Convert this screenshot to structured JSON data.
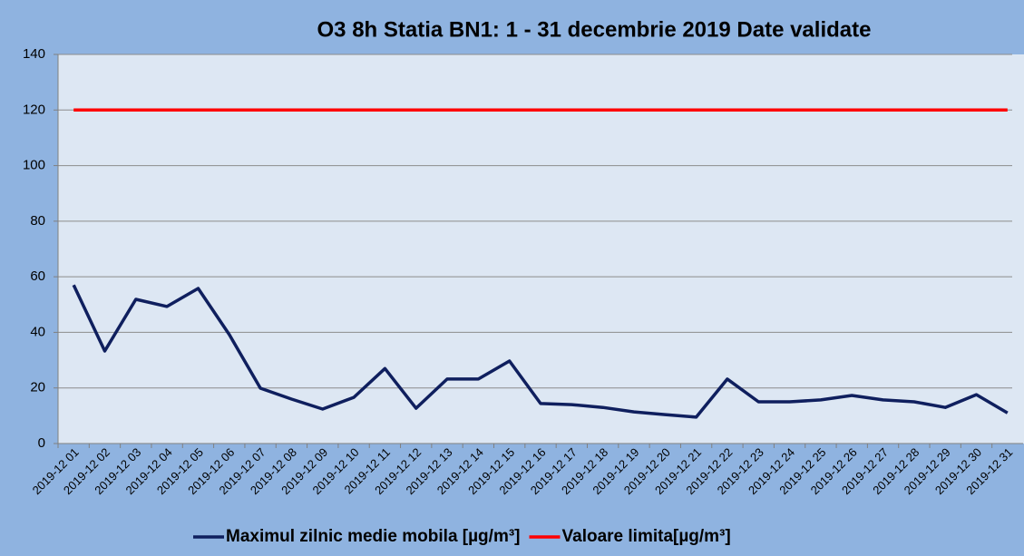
{
  "chart_data": {
    "type": "line",
    "title": "O3 8h  Statia BN1: 1 - 31 decembrie 2019  Date validate",
    "categories": [
      "2019-12 01",
      "2019-12 02",
      "2019-12 03",
      "2019-12 04",
      "2019-12 05",
      "2019-12 06",
      "2019-12 07",
      "2019-12 08",
      "2019-12 09",
      "2019-12 10",
      "2019-12 11",
      "2019-12 12",
      "2019-12 13",
      "2019-12 14",
      "2019-12 15",
      "2019-12 16",
      "2019-12 17",
      "2019-12 18",
      "2019-12 19",
      "2019-12 20",
      "2019-12 21",
      "2019-12 22",
      "2019-12 23",
      "2019-12 24",
      "2019-12 25",
      "2019-12 26",
      "2019-12 27",
      "2019-12 28",
      "2019-12 29",
      "2019-12 30",
      "2019-12 31"
    ],
    "series": [
      {
        "name": "Maximul zilnic medie mobila [µg/m³]",
        "color": "#0f1f5e",
        "values": [
          57,
          33.3,
          51.9,
          49.3,
          55.8,
          39.2,
          19.9,
          16,
          12.4,
          16.6,
          27,
          12.7,
          23.2,
          23.2,
          29.7,
          14.4,
          14,
          13,
          11.4,
          10.4,
          9.5,
          23.2,
          15,
          15,
          15.7,
          17.3,
          15.7,
          15,
          13,
          17.6,
          11
        ]
      },
      {
        "name": "Valoare limita[µg/m³]",
        "color": "#ff0000",
        "values": [
          120,
          120,
          120,
          120,
          120,
          120,
          120,
          120,
          120,
          120,
          120,
          120,
          120,
          120,
          120,
          120,
          120,
          120,
          120,
          120,
          120,
          120,
          120,
          120,
          120,
          120,
          120,
          120,
          120,
          120,
          120
        ]
      }
    ],
    "ylim": [
      0,
      140
    ],
    "yticks": [
      0,
      20,
      40,
      60,
      80,
      100,
      120,
      140
    ],
    "grid": true,
    "legend": "bottom"
  }
}
